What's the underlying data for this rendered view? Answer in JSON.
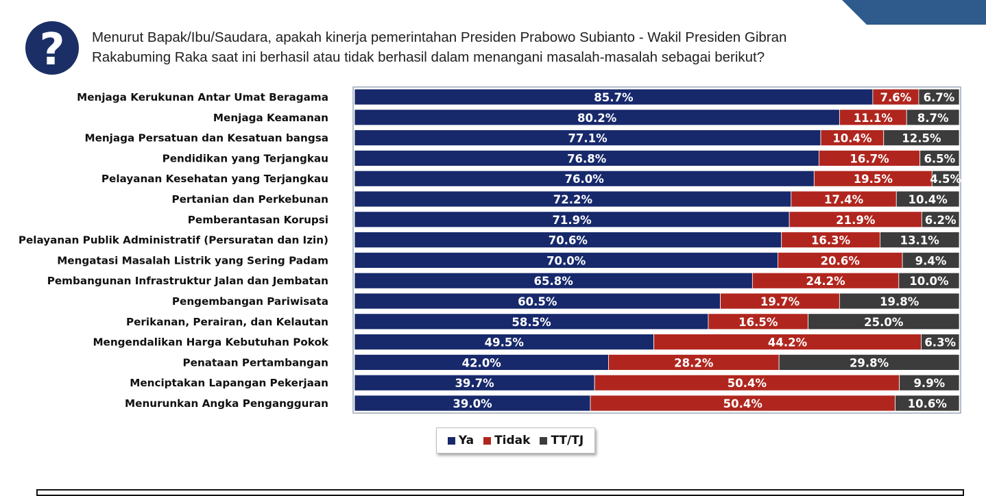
{
  "question": "Menurut Bapak/Ibu/Saudara, apakah kinerja pemerintahan Presiden Prabowo Subianto  - Wakil Presiden Gibran Rakabuming Raka saat ini berhasil atau tidak berhasil dalam menangani masalah-masalah sebagai berikut?",
  "colors": {
    "ya": "#17296b",
    "tidak": "#b0261e",
    "tttj": "#3c3c3c",
    "icon_circle": "#1b2f66",
    "border": "#9aa7b8"
  },
  "chart_data": {
    "type": "bar",
    "orientation": "horizontal",
    "stacked": true,
    "title": "",
    "categories": [
      "Menjaga Kerukunan Antar Umat Beragama",
      "Menjaga Keamanan",
      "Menjaga Persatuan dan Kesatuan bangsa",
      "Pendidikan yang Terjangkau",
      "Pelayanan Kesehatan yang Terjangkau",
      "Pertanian dan Perkebunan",
      "Pemberantasan Korupsi",
      "Pelayanan Publik Administratif (Persuratan dan Izin)",
      "Mengatasi Masalah Listrik yang Sering Padam",
      "Pembangunan Infrastruktur Jalan dan Jembatan",
      "Pengembangan Pariwisata",
      "Perikanan, Perairan, dan Kelautan",
      "Mengendalikan Harga Kebutuhan Pokok",
      "Penataan Pertambangan",
      "Menciptakan Lapangan Pekerjaan",
      "Menurunkan Angka Pengangguran"
    ],
    "series": [
      {
        "name": "Ya",
        "values": [
          85.7,
          80.2,
          77.1,
          76.8,
          76.0,
          72.2,
          71.9,
          70.6,
          70.0,
          65.8,
          60.5,
          58.5,
          49.5,
          42.0,
          39.7,
          39.0
        ],
        "labels": [
          "85.7%",
          "80.2%",
          "77.1%",
          "76.8%",
          "76.0%",
          "72.2%",
          "71.9%",
          "70.6%",
          "70.0%",
          "65.8%",
          "60.5%",
          "58.5%",
          "49.5%",
          "42.0%",
          "39.7%",
          "39.0%"
        ]
      },
      {
        "name": "Tidak",
        "values": [
          7.6,
          11.1,
          10.4,
          16.7,
          19.5,
          17.4,
          21.9,
          16.3,
          20.6,
          24.2,
          19.7,
          16.5,
          44.2,
          28.2,
          50.4,
          50.4
        ],
        "labels": [
          "7.6%",
          "11.1%",
          "10.4%",
          "16.7%",
          "19.5%",
          "17.4%",
          "21.9%",
          "16.3%",
          "20.6%",
          "24.2%",
          "19.7%",
          "16.5%",
          "44.2%",
          "28.2%",
          "50.4%",
          "50.4%"
        ]
      },
      {
        "name": "TT/TJ",
        "values": [
          6.7,
          8.7,
          12.5,
          6.5,
          4.5,
          10.4,
          6.2,
          13.1,
          9.4,
          10.0,
          19.8,
          25.0,
          6.3,
          29.8,
          9.9,
          10.6
        ],
        "labels": [
          "6.7%",
          "8.7%",
          "12.5%",
          "6.5%",
          "4.5%",
          "10.4%",
          "6.2%",
          "13.1%",
          "9.4%",
          "10.0%",
          "19.8%",
          "25.0%",
          "6.3%",
          "29.8%",
          "9.9%",
          "10.6%"
        ]
      }
    ],
    "xlim": [
      0,
      100
    ],
    "grid": false,
    "legend": {
      "position": "bottom-center",
      "entries": [
        "Ya",
        "Tidak",
        "TT/TJ"
      ]
    }
  }
}
